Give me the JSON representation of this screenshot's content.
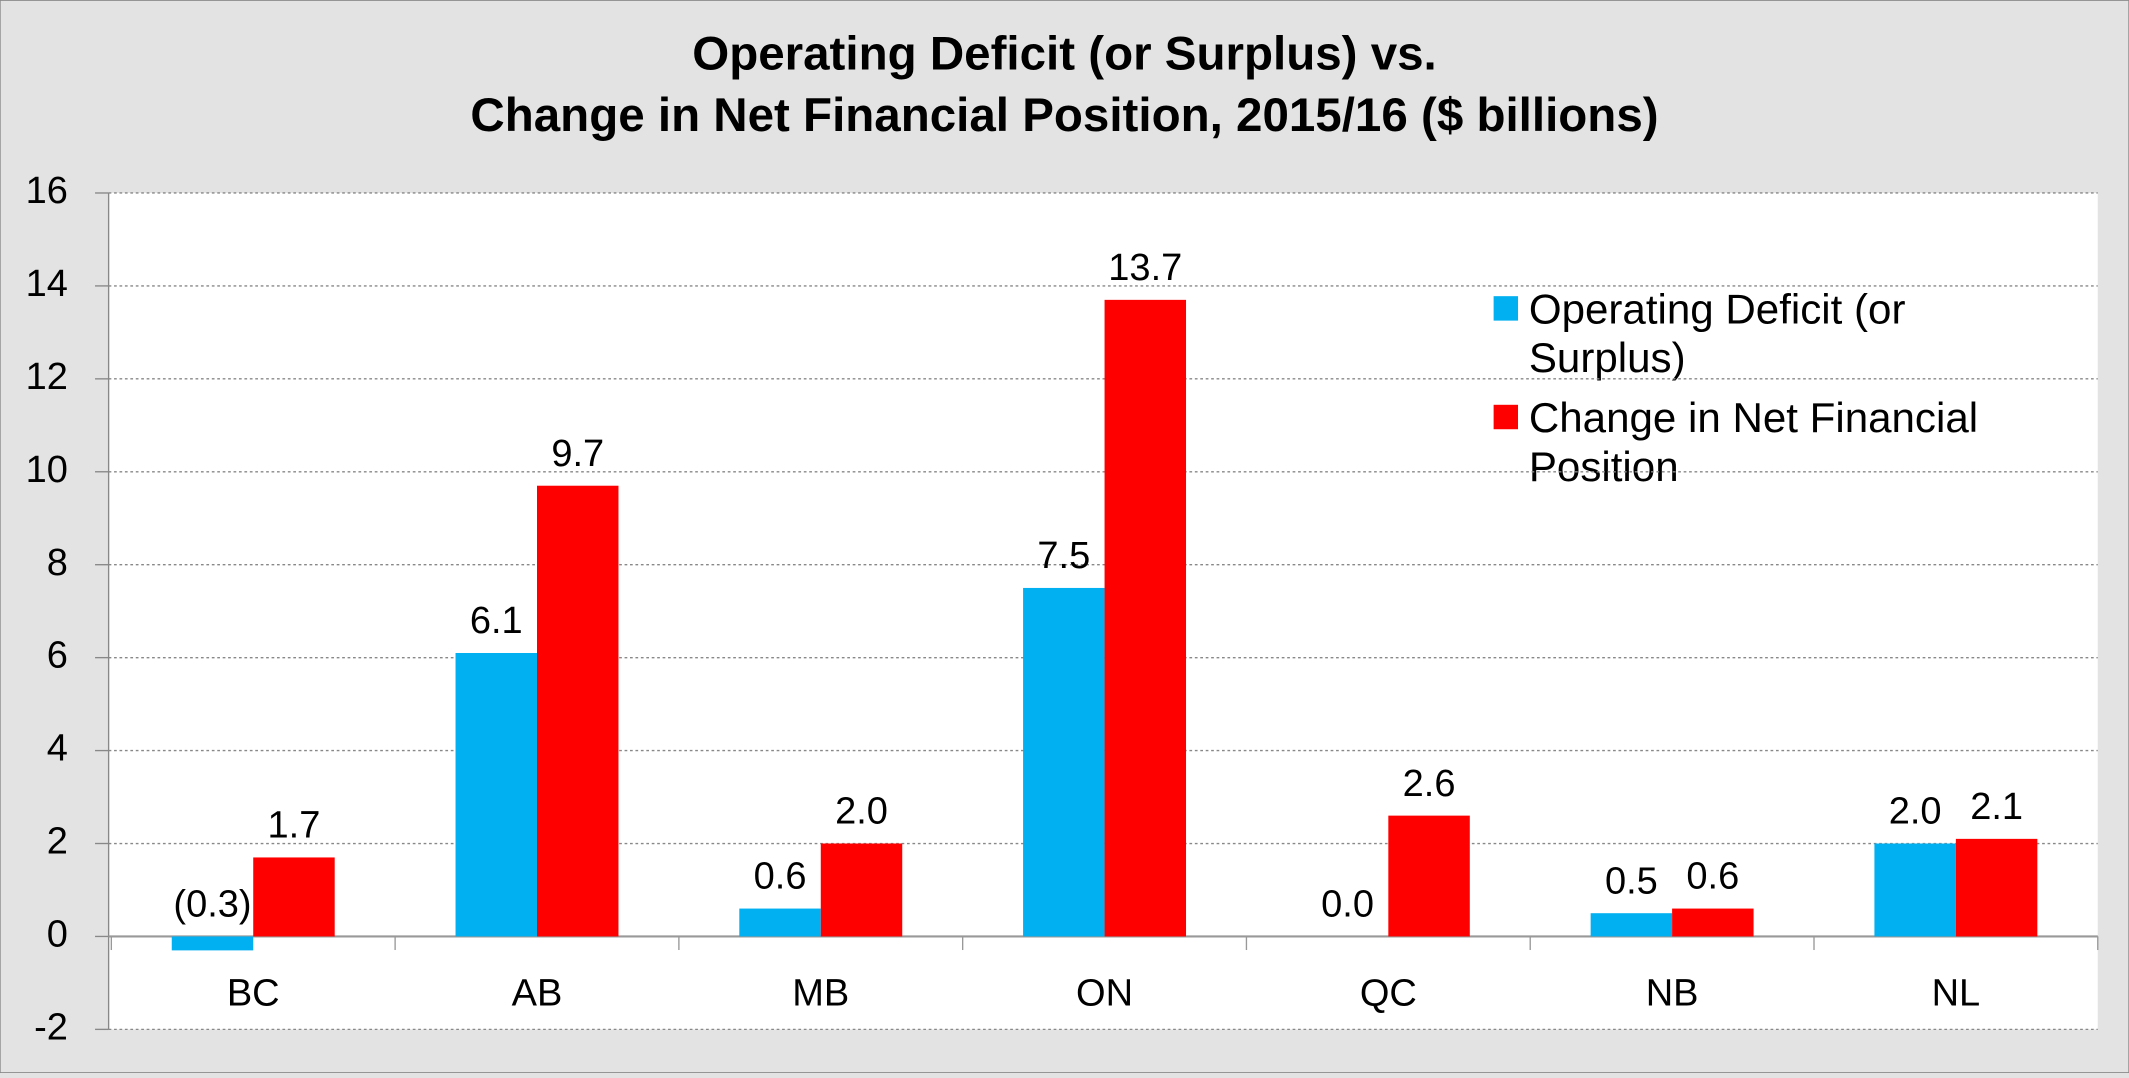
{
  "chart_data": {
    "type": "bar",
    "title": [
      "Operating Deficit (or Surplus) vs.",
      "Change in Net Financial Position, 2015/16 ($ billions)"
    ],
    "categories": [
      "BC",
      "AB",
      "MB",
      "ON",
      "QC",
      "NB",
      "NL"
    ],
    "series": [
      {
        "name": "Operating Deficit (or Surplus)",
        "color": "#00b0f0",
        "values": [
          -0.3,
          6.1,
          0.6,
          7.5,
          0.0,
          0.5,
          2.0
        ],
        "value_labels": [
          "(0.3)",
          "6.1",
          "0.6",
          "7.5",
          "0.0",
          "0.5",
          "2.0"
        ]
      },
      {
        "name": "Change in Net Financial Position",
        "color": "#ff0000",
        "values": [
          1.7,
          9.7,
          2.0,
          13.7,
          2.6,
          0.6,
          2.1
        ],
        "value_labels": [
          "1.7",
          "9.7",
          "2.0",
          "13.7",
          "2.6",
          "0.6",
          "2.1"
        ]
      }
    ],
    "ylim": [
      -2,
      16
    ],
    "yticks": [
      -2,
      0,
      2,
      4,
      6,
      8,
      10,
      12,
      14,
      16
    ],
    "grid": true,
    "legend": "upper right"
  }
}
